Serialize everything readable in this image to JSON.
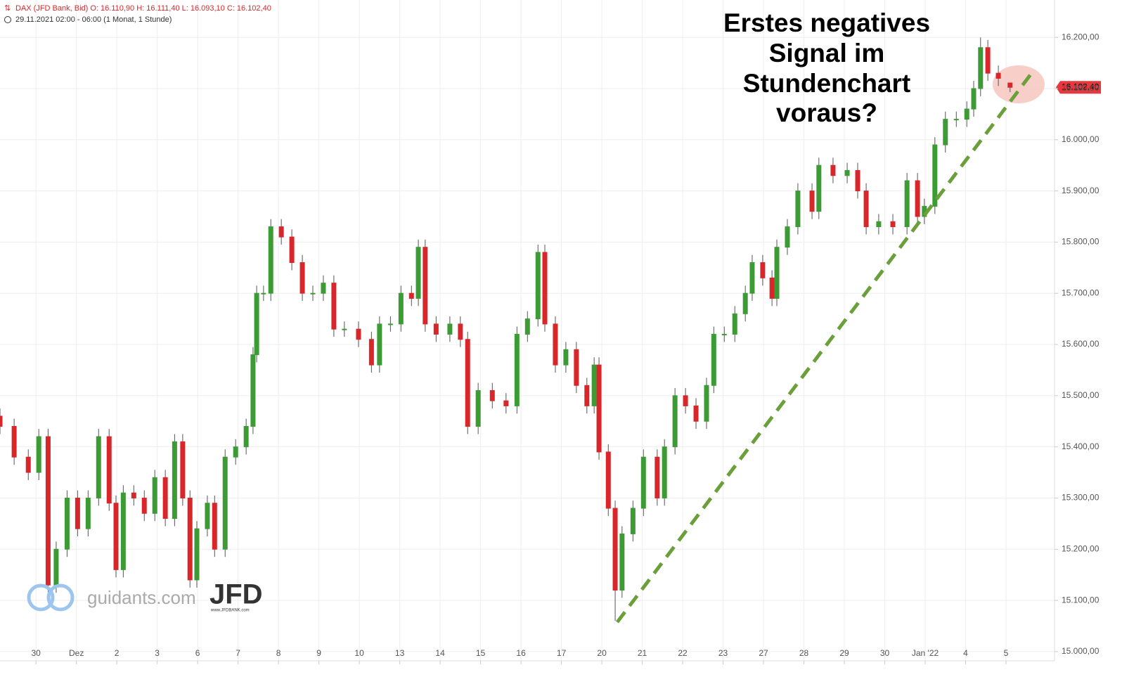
{
  "chart_data": {
    "type": "candlestick",
    "header": "DAX (JFD Bank, Bid)  O: 16.110,90  H: 16.111,40  L: 16.093,10  C: 16.102,40",
    "subheader": "29.11.2021 02:00 - 06:00   (1 Monat, 1 Stunde)",
    "annotation": [
      "Erstes negatives",
      "Signal im",
      "Stundenchart",
      "voraus?"
    ],
    "last_price": {
      "value": 16102.4,
      "label": "16.102,40"
    },
    "watermark": [
      "guidants.com",
      "JFD",
      "www.JFDBANK.com"
    ],
    "up_color": "#3d9b35",
    "down_color": "#d8272b",
    "grid": true,
    "xlim": [
      -0.89,
      25.2
    ],
    "xticks": [
      {
        "value": 0,
        "label": "30"
      },
      {
        "value": 1,
        "label": "Dez"
      },
      {
        "value": 2,
        "label": "2"
      },
      {
        "value": 3,
        "label": "3"
      },
      {
        "value": 4,
        "label": "6"
      },
      {
        "value": 5,
        "label": "7"
      },
      {
        "value": 6,
        "label": "8"
      },
      {
        "value": 7,
        "label": "9"
      },
      {
        "value": 8,
        "label": "10"
      },
      {
        "value": 9,
        "label": "13"
      },
      {
        "value": 10,
        "label": "14"
      },
      {
        "value": 11,
        "label": "15"
      },
      {
        "value": 12,
        "label": "16"
      },
      {
        "value": 13,
        "label": "17"
      },
      {
        "value": 14,
        "label": "20"
      },
      {
        "value": 15,
        "label": "21"
      },
      {
        "value": 16,
        "label": "22"
      },
      {
        "value": 17,
        "label": "23"
      },
      {
        "value": 18,
        "label": "27"
      },
      {
        "value": 19,
        "label": "28"
      },
      {
        "value": 20,
        "label": "29"
      },
      {
        "value": 21,
        "label": "30"
      },
      {
        "value": 22,
        "label": "Jan '22"
      },
      {
        "value": 23,
        "label": "4"
      },
      {
        "value": 24,
        "label": "5"
      }
    ],
    "ylim": [
      14982,
      16273
    ],
    "yticks": [
      {
        "value": 15000,
        "label": "15.000,00"
      },
      {
        "value": 15100,
        "label": "15.100,00"
      },
      {
        "value": 15200,
        "label": "15.200,00"
      },
      {
        "value": 15300,
        "label": "15.300,00"
      },
      {
        "value": 15400,
        "label": "15.400,00"
      },
      {
        "value": 15500,
        "label": "15.500,00"
      },
      {
        "value": 15600,
        "label": "15.600,00"
      },
      {
        "value": 15700,
        "label": "15.700,00"
      },
      {
        "value": 15800,
        "label": "15.800,00"
      },
      {
        "value": 15900,
        "label": "15.900,00"
      },
      {
        "value": 16000,
        "label": "16.000,00"
      },
      {
        "value": 16100,
        "label": "16.100,00"
      },
      {
        "value": 16200,
        "label": "16.200,00"
      }
    ],
    "x": [
      -0.89,
      -0.54,
      -0.19,
      0.07,
      0.3,
      0.5,
      0.77,
      1.03,
      1.29,
      1.55,
      1.81,
      1.98,
      2.16,
      2.42,
      2.68,
      2.94,
      3.2,
      3.43,
      3.63,
      3.81,
      3.98,
      4.24,
      4.42,
      4.68,
      4.94,
      5.2,
      5.37,
      5.46,
      5.63,
      5.81,
      6.07,
      6.33,
      6.59,
      6.85,
      7.11,
      7.37,
      7.63,
      7.98,
      8.3,
      8.5,
      8.77,
      9.03,
      9.29,
      9.46,
      9.63,
      9.9,
      10.24,
      10.5,
      10.68,
      10.94,
      11.29,
      11.63,
      11.9,
      12.16,
      12.42,
      12.59,
      12.85,
      13.11,
      13.37,
      13.63,
      13.81,
      13.93,
      14.16,
      14.33,
      14.5,
      14.77,
      15.03,
      15.37,
      15.55,
      15.81,
      16.07,
      16.33,
      16.59,
      16.77,
      17.03,
      17.29,
      17.55,
      17.72,
      17.98,
      18.21,
      18.33,
      18.59,
      18.85,
      19.2,
      19.37,
      19.72,
      20.07,
      20.33,
      20.54,
      20.85,
      21.2,
      21.55,
      21.81,
      21.98,
      22.24,
      22.5,
      22.77,
      23.03,
      23.2,
      23.37,
      23.55,
      23.81,
      24.1
    ],
    "ohlc": [
      [
        15460,
        15475,
        15425,
        15440
      ],
      [
        15440,
        15455,
        15365,
        15380
      ],
      [
        15380,
        15395,
        15335,
        15350
      ],
      [
        15350,
        15435,
        15335,
        15420
      ],
      [
        15420,
        15435,
        15115,
        15130
      ],
      [
        15130,
        15215,
        15115,
        15200
      ],
      [
        15200,
        15315,
        15185,
        15300
      ],
      [
        15300,
        15315,
        15225,
        15240
      ],
      [
        15240,
        15315,
        15225,
        15300
      ],
      [
        15300,
        15435,
        15285,
        15420
      ],
      [
        15420,
        15435,
        15275,
        15290
      ],
      [
        15290,
        15305,
        15145,
        15160
      ],
      [
        15160,
        15325,
        15145,
        15310
      ],
      [
        15310,
        15325,
        15285,
        15300
      ],
      [
        15300,
        15315,
        15255,
        15270
      ],
      [
        15270,
        15355,
        15255,
        15340
      ],
      [
        15340,
        15355,
        15245,
        15260
      ],
      [
        15260,
        15425,
        15245,
        15410
      ],
      [
        15410,
        15425,
        15285,
        15300
      ],
      [
        15300,
        15315,
        15125,
        15140
      ],
      [
        15140,
        15255,
        15125,
        15240
      ],
      [
        15240,
        15305,
        15225,
        15290
      ],
      [
        15290,
        15305,
        15185,
        15200
      ],
      [
        15200,
        15395,
        15185,
        15380
      ],
      [
        15380,
        15415,
        15365,
        15400
      ],
      [
        15400,
        15455,
        15385,
        15440
      ],
      [
        15440,
        15595,
        15425,
        15580
      ],
      [
        15580,
        15715,
        15565,
        15700
      ],
      [
        15700,
        15715,
        15685,
        15700
      ],
      [
        15700,
        15845,
        15685,
        15830
      ],
      [
        15830,
        15845,
        15795,
        15810
      ],
      [
        15810,
        15825,
        15745,
        15760
      ],
      [
        15760,
        15775,
        15685,
        15700
      ],
      [
        15700,
        15715,
        15685,
        15700
      ],
      [
        15700,
        15735,
        15685,
        15720
      ],
      [
        15720,
        15735,
        15615,
        15630
      ],
      [
        15630,
        15645,
        15615,
        15630
      ],
      [
        15630,
        15645,
        15595,
        15610
      ],
      [
        15610,
        15625,
        15545,
        15560
      ],
      [
        15560,
        15655,
        15545,
        15640
      ],
      [
        15640,
        15655,
        15625,
        15640
      ],
      [
        15640,
        15715,
        15625,
        15700
      ],
      [
        15700,
        15715,
        15675,
        15690
      ],
      [
        15690,
        15805,
        15675,
        15790
      ],
      [
        15790,
        15805,
        15625,
        15640
      ],
      [
        15640,
        15655,
        15605,
        15620
      ],
      [
        15620,
        15655,
        15605,
        15640
      ],
      [
        15640,
        15655,
        15595,
        15610
      ],
      [
        15610,
        15625,
        15425,
        15440
      ],
      [
        15440,
        15525,
        15425,
        15510
      ],
      [
        15510,
        15525,
        15475,
        15490
      ],
      [
        15490,
        15505,
        15465,
        15480
      ],
      [
        15480,
        15635,
        15465,
        15620
      ],
      [
        15620,
        15665,
        15605,
        15650
      ],
      [
        15650,
        15795,
        15635,
        15780
      ],
      [
        15780,
        15795,
        15625,
        15640
      ],
      [
        15640,
        15655,
        15545,
        15560
      ],
      [
        15560,
        15605,
        15545,
        15590
      ],
      [
        15590,
        15605,
        15505,
        15520
      ],
      [
        15520,
        15535,
        15465,
        15480
      ],
      [
        15480,
        15575,
        15465,
        15560
      ],
      [
        15560,
        15575,
        15375,
        15390
      ],
      [
        15390,
        15405,
        15265,
        15280
      ],
      [
        15280,
        15295,
        15060,
        15120
      ],
      [
        15120,
        15245,
        15105,
        15230
      ],
      [
        15230,
        15295,
        15215,
        15280
      ],
      [
        15280,
        15395,
        15265,
        15380
      ],
      [
        15380,
        15395,
        15285,
        15300
      ],
      [
        15300,
        15415,
        15285,
        15400
      ],
      [
        15400,
        15515,
        15385,
        15500
      ],
      [
        15500,
        15515,
        15465,
        15480
      ],
      [
        15480,
        15495,
        15435,
        15450
      ],
      [
        15450,
        15535,
        15435,
        15520
      ],
      [
        15520,
        15635,
        15505,
        15620
      ],
      [
        15620,
        15635,
        15605,
        15620
      ],
      [
        15620,
        15675,
        15605,
        15660
      ],
      [
        15660,
        15715,
        15645,
        15700
      ],
      [
        15700,
        15775,
        15685,
        15760
      ],
      [
        15760,
        15775,
        15715,
        15730
      ],
      [
        15730,
        15745,
        15675,
        15690
      ],
      [
        15690,
        15805,
        15675,
        15790
      ],
      [
        15790,
        15845,
        15775,
        15830
      ],
      [
        15830,
        15915,
        15815,
        15900
      ],
      [
        15900,
        15915,
        15845,
        15860
      ],
      [
        15860,
        15965,
        15845,
        15950
      ],
      [
        15950,
        15965,
        15915,
        15930
      ],
      [
        15930,
        15955,
        15915,
        15940
      ],
      [
        15940,
        15955,
        15885,
        15900
      ],
      [
        15900,
        15915,
        15815,
        15830
      ],
      [
        15830,
        15855,
        15815,
        15840
      ],
      [
        15840,
        15855,
        15815,
        15830
      ],
      [
        15830,
        15935,
        15815,
        15920
      ],
      [
        15920,
        15935,
        15835,
        15850
      ],
      [
        15850,
        15885,
        15835,
        15870
      ],
      [
        15870,
        16005,
        15855,
        15990
      ],
      [
        15990,
        16055,
        15975,
        16040
      ],
      [
        16040,
        16055,
        16025,
        16040
      ],
      [
        16040,
        16075,
        16025,
        16060
      ],
      [
        16060,
        16115,
        16045,
        16100
      ],
      [
        16100,
        16200,
        16085,
        16180
      ],
      [
        16180,
        16195,
        16115,
        16130
      ],
      [
        16130,
        16145,
        16105,
        16120
      ],
      [
        16110.9,
        16111.4,
        16093.1,
        16102.4
      ]
    ]
  }
}
